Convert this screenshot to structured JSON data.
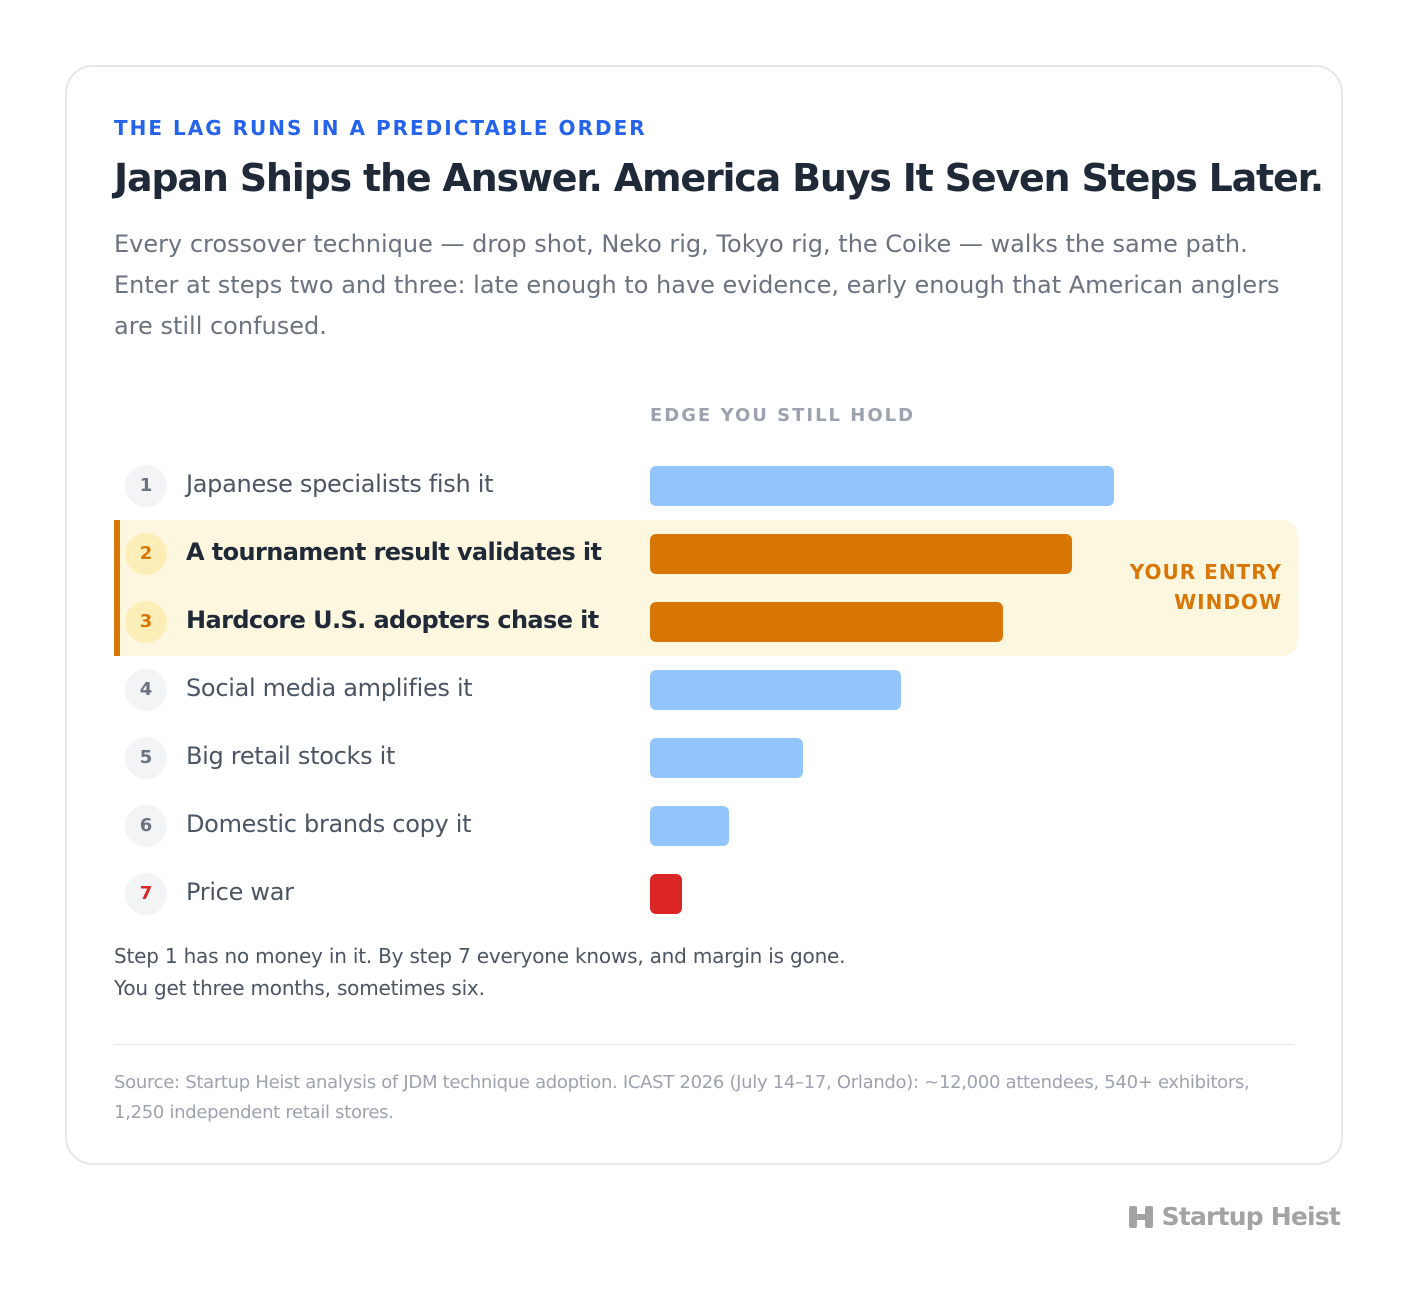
{
  "eyebrow": "THE LAG RUNS IN A PREDICTABLE ORDER",
  "headline": "Japan Ships the Answer. America Buys It Seven Steps Later.",
  "dek": "Every crossover technique — drop shot, Neko rig, Tokyo rig, the Coike — walks the same path. Enter at steps two and three: late enough to have evidence, early enough that American anglers are still confused.",
  "highlight": {
    "line1": "YOUR ENTRY",
    "line2": "WINDOW"
  },
  "note": {
    "line1": "Step 1 has no money in it. By step 7 everyone knows, and margin is gone.",
    "line2": "You get three months, sometimes six."
  },
  "source": "Source: Startup Heist analysis of JDM technique adoption. ICAST 2026 (July 14–17, Orlando): ~12,000 attendees, 540+ exhibitors, 1,250 independent retail stores.",
  "brand": {
    "name": "Startup Heist",
    "icon": "h-logo-icon"
  },
  "colors": {
    "accent_blue": "#2563eb",
    "bar_default": "#93c5fd",
    "bar_entry": "#d97706",
    "bar_danger": "#dc2626",
    "highlight_bg": "#fdf7e0"
  },
  "chart_data": {
    "type": "bar",
    "orientation": "horizontal",
    "xlabel": "EDGE YOU STILL HOLD",
    "categories": [
      "Japanese specialists fish it",
      "A tournament result validates it",
      "Hardcore U.S. adopters chase it",
      "Social media amplifies it",
      "Big retail stocks it",
      "Domestic brands copy it",
      "Price war"
    ],
    "step_numbers": [
      "1",
      "2",
      "3",
      "4",
      "5",
      "6",
      "7"
    ],
    "values": [
      100,
      91,
      76,
      54,
      33,
      17,
      7
    ],
    "xlim": [
      0,
      100
    ],
    "highlighted_steps": [
      2,
      3
    ],
    "danger_steps": [
      7
    ],
    "grid": false
  }
}
